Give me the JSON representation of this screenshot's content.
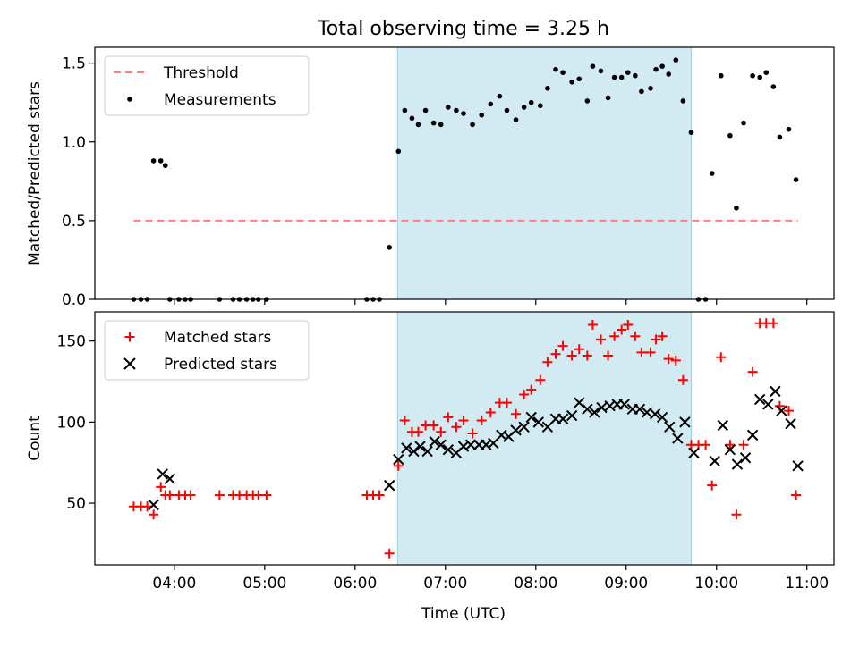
{
  "chart_data": {
    "title": "Total observing time = 3.25 h",
    "xlabel": "Time (UTC)",
    "x_ticks": [
      "04:00",
      "05:00",
      "06:00",
      "07:00",
      "08:00",
      "09:00",
      "10:00",
      "11:00"
    ],
    "x_tick_hours": [
      4,
      5,
      6,
      7,
      8,
      9,
      10,
      11
    ],
    "xlim": [
      3.12,
      11.3
    ],
    "observing_window": [
      6.47,
      9.72
    ],
    "window_color": "#add8e6",
    "panels": [
      {
        "type": "scatter",
        "ylabel": "Matched/Predicted stars",
        "ylim": [
          0,
          1.6
        ],
        "y_ticks": [
          "0.0",
          "0.5",
          "1.0",
          "1.5"
        ],
        "y_tick_values": [
          0,
          0.5,
          1.0,
          1.5
        ],
        "legend_position": "upper-left",
        "series": [
          {
            "name": "Threshold",
            "style": "dashed-line",
            "color": "#ff7f7f",
            "x": [
              3.55,
              10.9
            ],
            "y": [
              0.5,
              0.5
            ]
          },
          {
            "name": "Measurements",
            "style": "dot",
            "color": "#000000",
            "x": [
              3.55,
              3.63,
              3.7,
              3.77,
              3.85,
              3.9,
              3.95,
              4.05,
              4.12,
              4.18,
              4.5,
              4.65,
              4.72,
              4.8,
              4.87,
              4.93,
              5.02,
              6.13,
              6.2,
              6.27,
              6.38,
              6.48,
              6.55,
              6.63,
              6.7,
              6.78,
              6.87,
              6.95,
              7.03,
              7.12,
              7.2,
              7.3,
              7.4,
              7.5,
              7.6,
              7.68,
              7.78,
              7.87,
              7.95,
              8.05,
              8.13,
              8.22,
              8.3,
              8.4,
              8.48,
              8.57,
              8.63,
              8.72,
              8.8,
              8.87,
              8.95,
              9.02,
              9.1,
              9.17,
              9.27,
              9.33,
              9.4,
              9.47,
              9.55,
              9.63,
              9.72,
              9.8,
              9.88,
              9.95,
              10.05,
              10.15,
              10.22,
              10.3,
              10.4,
              10.48,
              10.55,
              10.63,
              10.7,
              10.8,
              10.88
            ],
            "y": [
              0,
              0,
              0,
              0.88,
              0.88,
              0.85,
              0,
              0,
              0,
              0,
              0,
              0,
              0,
              0,
              0,
              0,
              0,
              0,
              0,
              0,
              0.33,
              0.94,
              1.2,
              1.15,
              1.11,
              1.2,
              1.12,
              1.11,
              1.22,
              1.2,
              1.18,
              1.11,
              1.17,
              1.24,
              1.29,
              1.2,
              1.14,
              1.22,
              1.25,
              1.23,
              1.34,
              1.46,
              1.44,
              1.38,
              1.4,
              1.26,
              1.48,
              1.45,
              1.28,
              1.41,
              1.41,
              1.44,
              1.42,
              1.32,
              1.34,
              1.46,
              1.48,
              1.43,
              1.52,
              1.26,
              1.06,
              0,
              0,
              0.8,
              1.42,
              1.04,
              0.58,
              1.12,
              1.42,
              1.41,
              1.44,
              1.35,
              1.03,
              1.08,
              0.76
            ]
          }
        ]
      },
      {
        "type": "scatter",
        "ylabel": "Count",
        "ylim": [
          12,
          168
        ],
        "y_ticks": [
          "50",
          "100",
          "150"
        ],
        "y_tick_values": [
          50,
          100,
          150
        ],
        "legend_position": "upper-left",
        "series": [
          {
            "name": "Matched stars",
            "style": "plus",
            "color": "#ff0000",
            "x": [
              3.55,
              3.63,
              3.7,
              3.77,
              3.85,
              3.9,
              3.95,
              4.05,
              4.12,
              4.18,
              4.5,
              4.65,
              4.72,
              4.8,
              4.87,
              4.93,
              5.02,
              6.13,
              6.2,
              6.27,
              6.38,
              6.48,
              6.55,
              6.63,
              6.7,
              6.78,
              6.87,
              6.95,
              7.03,
              7.12,
              7.2,
              7.3,
              7.4,
              7.5,
              7.6,
              7.68,
              7.78,
              7.87,
              7.95,
              8.05,
              8.13,
              8.22,
              8.3,
              8.4,
              8.48,
              8.57,
              8.63,
              8.72,
              8.8,
              8.87,
              8.95,
              9.02,
              9.1,
              9.17,
              9.27,
              9.33,
              9.4,
              9.47,
              9.55,
              9.63,
              9.72,
              9.8,
              9.88,
              9.95,
              10.05,
              10.15,
              10.22,
              10.3,
              10.4,
              10.48,
              10.55,
              10.63,
              10.7,
              10.8,
              10.88
            ],
            "y": [
              48,
              48,
              48,
              43,
              60,
              55,
              55,
              55,
              55,
              55,
              55,
              55,
              55,
              55,
              55,
              55,
              55,
              55,
              55,
              55,
              19,
              73,
              101,
              94,
              94,
              98,
              98,
              94,
              103,
              97,
              101,
              93,
              101,
              106,
              112,
              112,
              105,
              117,
              120,
              126,
              137,
              142,
              147,
              141,
              145,
              141,
              160,
              151,
              141,
              153,
              157,
              160,
              153,
              143,
              143,
              151,
              153,
              139,
              138,
              126,
              86,
              86,
              86,
              61,
              140,
              86,
              43,
              86,
              131,
              161,
              161,
              161,
              110,
              107,
              55
            ]
          },
          {
            "name": "Predicted stars",
            "style": "x",
            "color": "#000000",
            "x": [
              3.77,
              3.87,
              3.95,
              6.38,
              6.48,
              6.57,
              6.65,
              6.72,
              6.8,
              6.88,
              6.95,
              7.03,
              7.12,
              7.2,
              7.28,
              7.37,
              7.45,
              7.53,
              7.62,
              7.7,
              7.78,
              7.87,
              7.95,
              8.03,
              8.13,
              8.22,
              8.3,
              8.4,
              8.48,
              8.57,
              8.65,
              8.73,
              8.82,
              8.9,
              8.98,
              9.07,
              9.15,
              9.23,
              9.32,
              9.4,
              9.48,
              9.57,
              9.65,
              9.75,
              9.98,
              10.07,
              10.15,
              10.23,
              10.32,
              10.4,
              10.48,
              10.57,
              10.65,
              10.72,
              10.82,
              10.9
            ],
            "y": [
              49,
              68,
              65,
              61,
              77,
              84,
              82,
              85,
              82,
              88,
              86,
              83,
              81,
              85,
              86,
              86,
              86,
              87,
              92,
              91,
              95,
              97,
              103,
              100,
              97,
              102,
              102,
              104,
              112,
              108,
              106,
              109,
              110,
              111,
              111,
              108,
              108,
              106,
              105,
              103,
              97,
              90,
              100,
              81,
              76,
              98,
              83,
              74,
              78,
              92,
              114,
              111,
              119,
              107,
              99,
              73
            ]
          }
        ]
      }
    ]
  }
}
